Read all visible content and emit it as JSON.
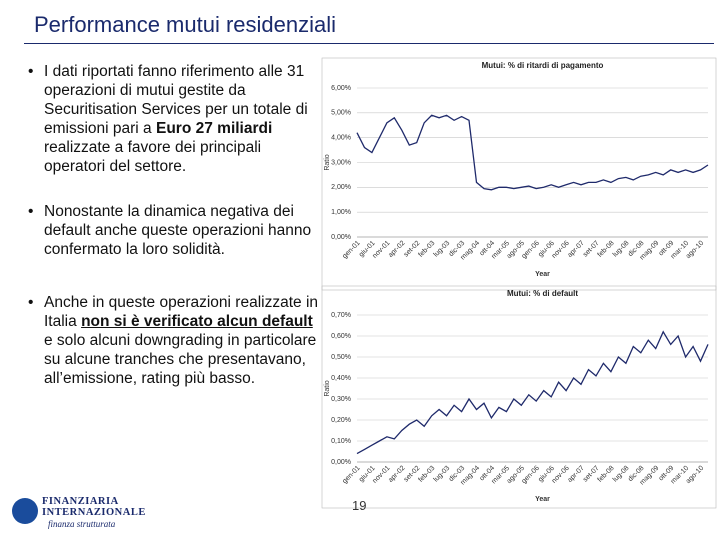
{
  "slide": {
    "title": "Performance mutui residenziali",
    "bullets": [
      [
        {
          "text": "I dati riportati fanno riferimento alle 31 operazioni di mutui gestite da Securitisation Services per un totale di emissioni pari a "
        },
        {
          "text": "Euro 27 miliardi",
          "bold": true
        },
        {
          "text": " realizzate a favore dei principali operatori del settore."
        }
      ],
      [
        {
          "text": "Nonostante la dinamica negativa dei default anche queste operazioni hanno confermato la loro solidità."
        }
      ],
      [
        {
          "text": "Anche in queste operazioni realizzate in Italia "
        },
        {
          "text": "non si è verificato alcun default",
          "bold": true,
          "underline": true
        },
        {
          "text": " e solo alcuni downgrading in particolare su alcune tranches che presentavano, all’emissione, rating più basso."
        }
      ]
    ],
    "page_number": "19",
    "logo": {
      "line1": "FINANZIARIA",
      "line2": "INTERNAZIONALE",
      "tagline": "finanza strutturata"
    }
  },
  "chart_data": [
    {
      "type": "line",
      "title": "Mutui: % di ritardi di pagamento",
      "x_label": "Year",
      "y_label": "Ratio",
      "color": "#1f2a6b",
      "grid": true,
      "categories": [
        "gen-01",
        null,
        "giu-01",
        null,
        "nov-01",
        null,
        "apr-02",
        null,
        "set-02",
        null,
        "feb-03",
        null,
        "lug-03",
        null,
        "dic-03",
        null,
        "mag-04",
        null,
        "ott-04",
        null,
        "mar-05",
        null,
        "ago-05",
        null,
        "gen-06",
        null,
        "giu-06",
        null,
        "nov-06",
        null,
        "apr-07",
        null,
        "set-07",
        null,
        "feb-08",
        null,
        "lug-08",
        null,
        "dic-08",
        null,
        "mag-09",
        null,
        "ott-09",
        null,
        "mar-10",
        null,
        "ago-10",
        null
      ],
      "values": [
        4.2,
        3.6,
        3.4,
        4.0,
        4.6,
        4.8,
        4.3,
        3.7,
        3.8,
        4.6,
        4.9,
        4.8,
        4.9,
        4.7,
        4.85,
        4.7,
        2.2,
        1.95,
        1.9,
        2.0,
        2.0,
        1.95,
        2.0,
        2.05,
        1.95,
        2.0,
        2.1,
        2.0,
        2.1,
        2.2,
        2.1,
        2.2,
        2.2,
        2.3,
        2.2,
        2.35,
        2.4,
        2.3,
        2.45,
        2.5,
        2.6,
        2.5,
        2.7,
        2.6,
        2.7,
        2.6,
        2.7,
        2.9
      ],
      "ylim": [
        0,
        6
      ],
      "yticks": [
        {
          "value": 0,
          "label": "0,00%"
        },
        {
          "value": 1,
          "label": "1,00%"
        },
        {
          "value": 2,
          "label": "2,00%"
        },
        {
          "value": 3,
          "label": "3,00%"
        },
        {
          "value": 4,
          "label": "4,00%"
        },
        {
          "value": 5,
          "label": "5,00%"
        },
        {
          "value": 6,
          "label": "6,00%"
        }
      ]
    },
    {
      "type": "line",
      "title": "Mutui: % di default",
      "x_label": "Year",
      "y_label": "Ratio",
      "color": "#1f2a6b",
      "grid": true,
      "categories": [
        "gen-01",
        null,
        "giu-01",
        null,
        "nov-01",
        null,
        "apr-02",
        null,
        "set-02",
        null,
        "feb-03",
        null,
        "lug-03",
        null,
        "dic-03",
        null,
        "mag-04",
        null,
        "ott-04",
        null,
        "mar-05",
        null,
        "ago-05",
        null,
        "gen-06",
        null,
        "giu-06",
        null,
        "nov-06",
        null,
        "apr-07",
        null,
        "set-07",
        null,
        "feb-08",
        null,
        "lug-08",
        null,
        "dic-08",
        null,
        "mag-09",
        null,
        "ott-09",
        null,
        "mar-10",
        null,
        "ago-10",
        null
      ],
      "values": [
        0.04,
        0.06,
        0.08,
        0.1,
        0.12,
        0.11,
        0.15,
        0.18,
        0.2,
        0.17,
        0.22,
        0.25,
        0.22,
        0.27,
        0.24,
        0.3,
        0.25,
        0.28,
        0.21,
        0.26,
        0.24,
        0.3,
        0.27,
        0.32,
        0.29,
        0.34,
        0.31,
        0.38,
        0.34,
        0.4,
        0.37,
        0.44,
        0.41,
        0.47,
        0.43,
        0.5,
        0.47,
        0.55,
        0.52,
        0.58,
        0.54,
        0.62,
        0.56,
        0.6,
        0.5,
        0.55,
        0.48,
        0.56
      ],
      "ylim": [
        0,
        0.7
      ],
      "yticks": [
        {
          "value": 0,
          "label": "0,00%"
        },
        {
          "value": 0.1,
          "label": "0,10%"
        },
        {
          "value": 0.2,
          "label": "0,20%"
        },
        {
          "value": 0.3,
          "label": "0,30%"
        },
        {
          "value": 0.4,
          "label": "0,40%"
        },
        {
          "value": 0.5,
          "label": "0,50%"
        },
        {
          "value": 0.6,
          "label": "0,60%"
        },
        {
          "value": 0.7,
          "label": "0,70%"
        }
      ]
    }
  ]
}
